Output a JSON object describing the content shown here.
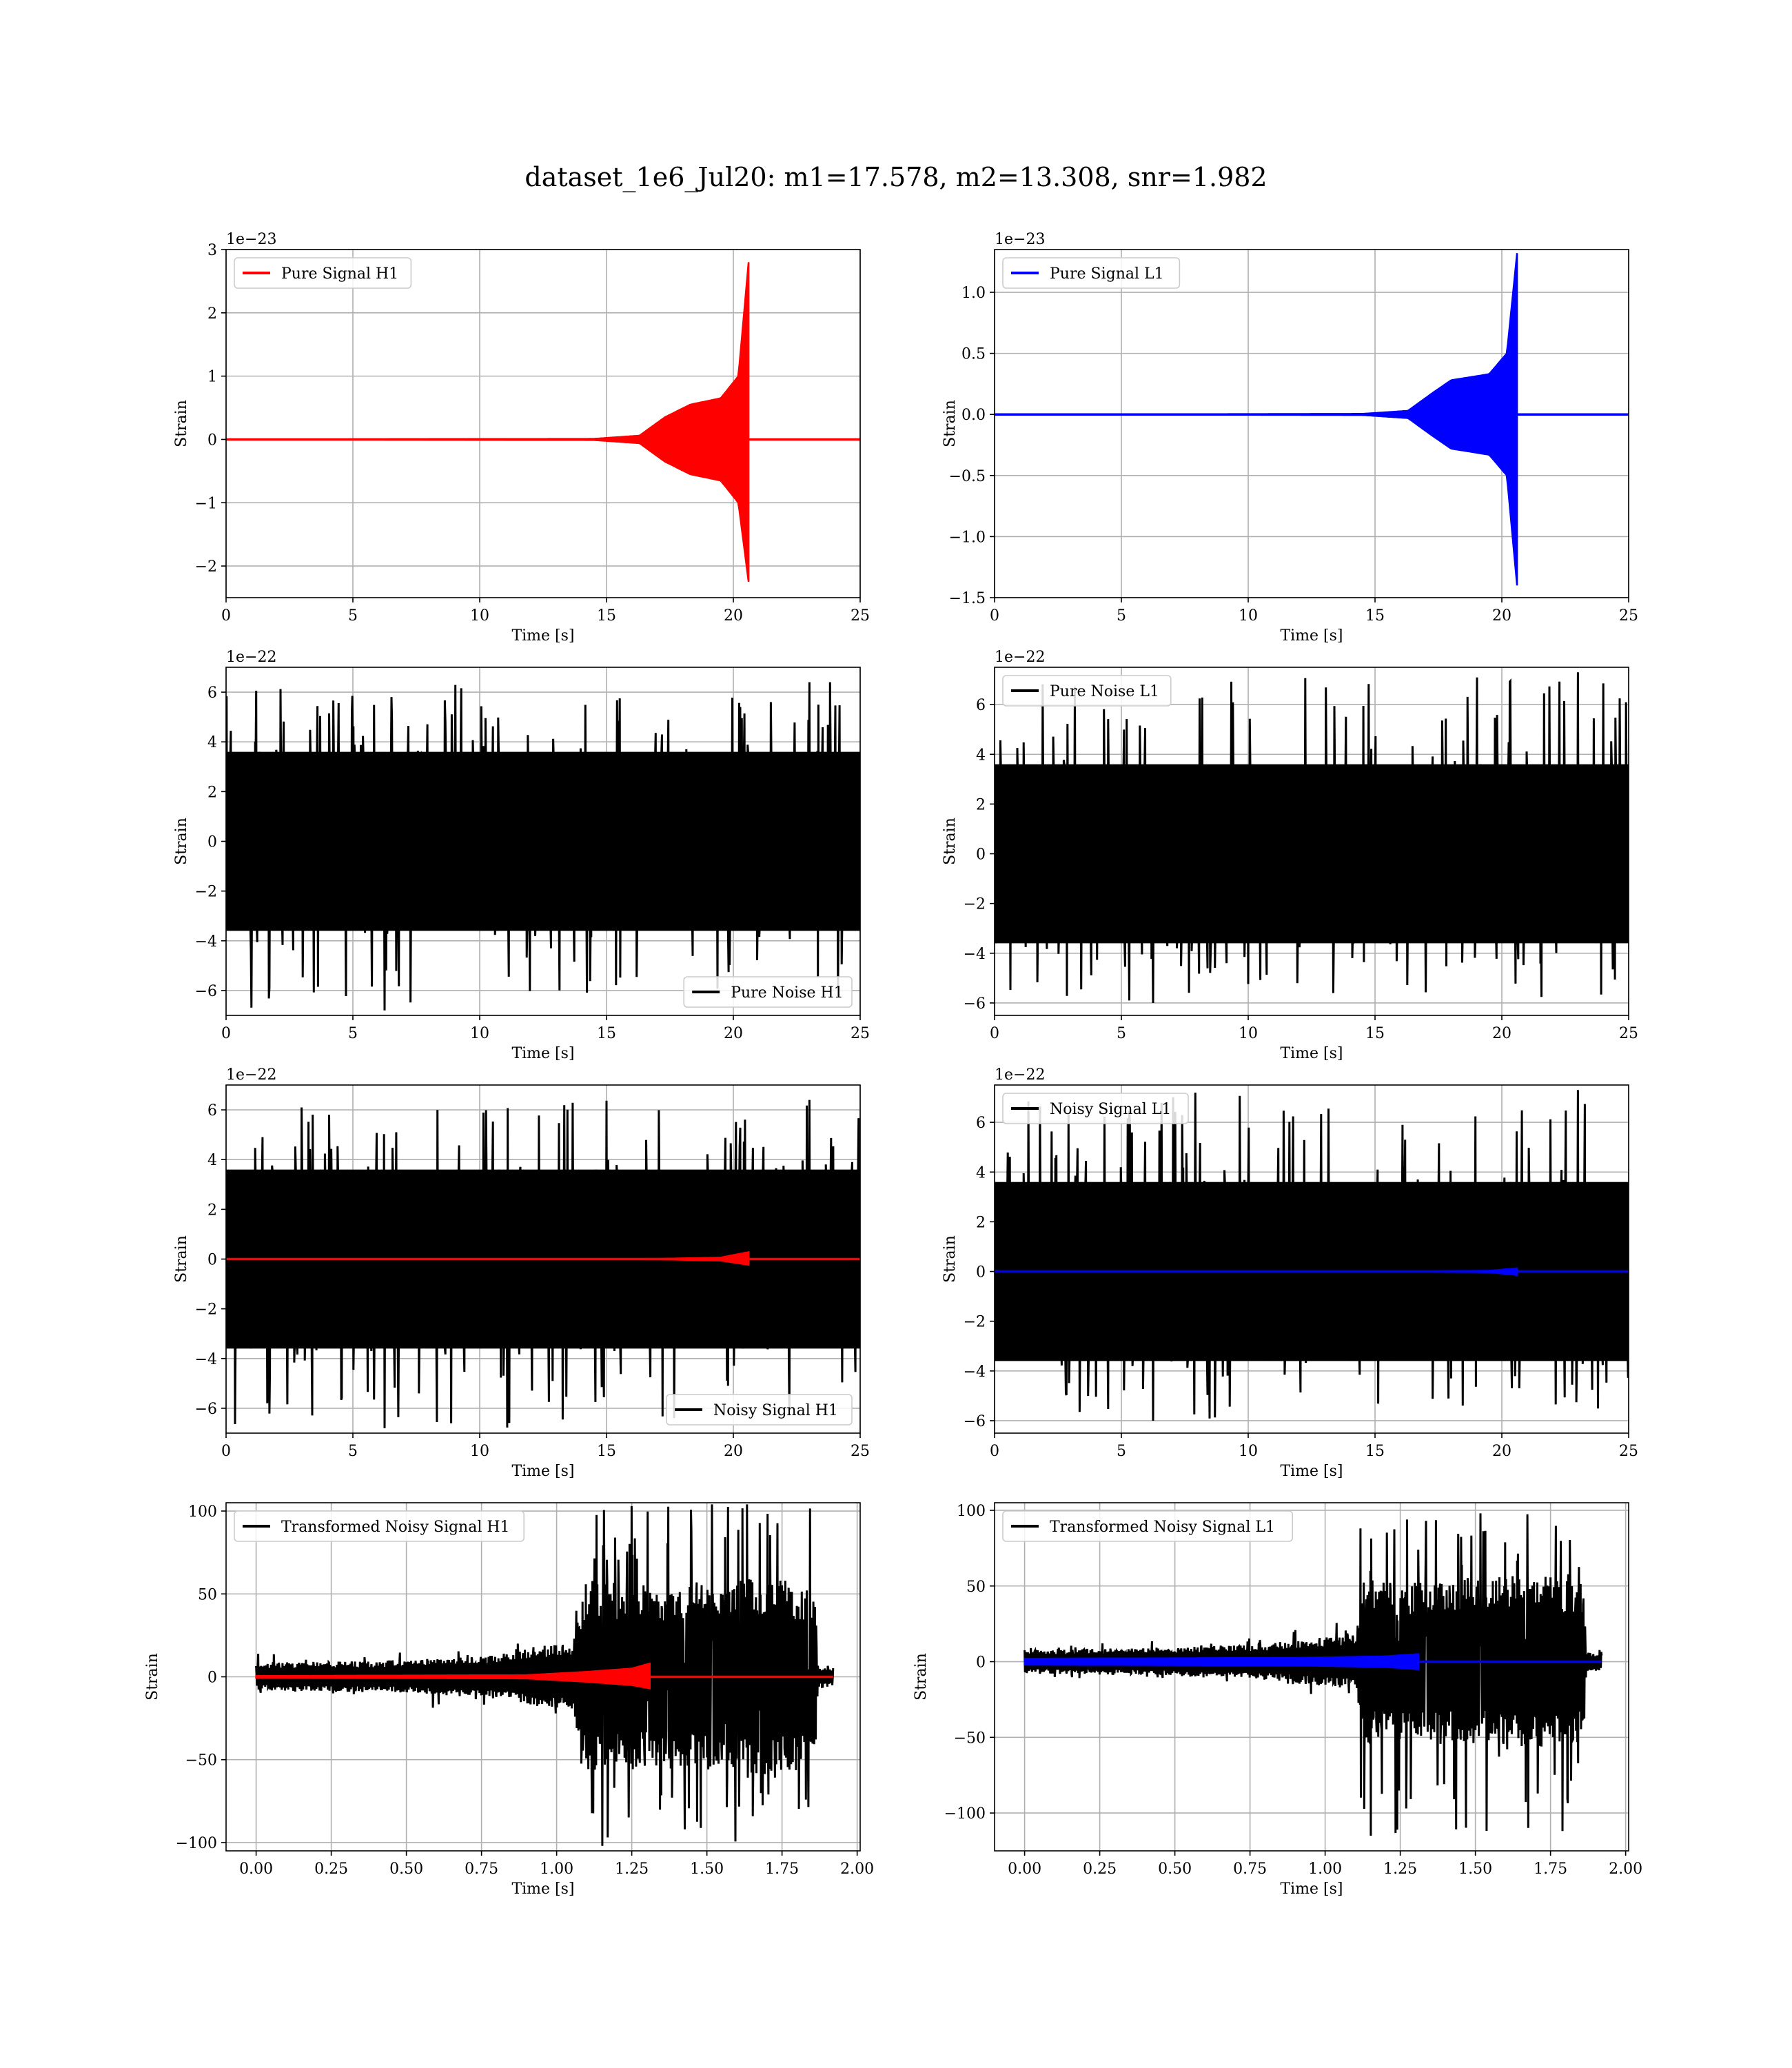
{
  "figure": {
    "title": "dataset_1e6_Jul20: m1=17.578, m2=13.308, snr=1.982"
  },
  "colors": {
    "h1_signal": "#ff0000",
    "l1_signal": "#0000ff",
    "noise": "#000000",
    "grid": "#b0b0b0"
  },
  "chart_data": [
    {
      "id": "pure-signal-h1",
      "type": "line",
      "xlabel": "Time [s]",
      "ylabel": "Strain",
      "offset_text": "1e−23",
      "xlim": [
        0,
        25
      ],
      "ylim": [
        -2.5,
        3
      ],
      "xticks": [
        0,
        5,
        10,
        15,
        20,
        25
      ],
      "xtick_labels": [
        "0",
        "5",
        "10",
        "15",
        "20",
        "25"
      ],
      "yticks": [
        -2,
        -1,
        0,
        1,
        2,
        3
      ],
      "ytick_labels": [
        "−2",
        "−1",
        "0",
        "1",
        "2",
        "3"
      ],
      "legend_position": "upper-left",
      "grid": true,
      "series": [
        {
          "name": "Pure Signal H1",
          "color": "#ff0000",
          "kind": "chirp",
          "x_start": 0,
          "x_end": 25,
          "merger_time": 20.6,
          "envelope": [
            [
              0,
              0
            ],
            [
              14.5,
              0.01
            ],
            [
              16.3,
              0.06
            ],
            [
              17.3,
              0.35
            ],
            [
              18.3,
              0.55
            ],
            [
              19.5,
              0.65
            ],
            [
              20.2,
              1.0
            ],
            [
              20.6,
              2.8
            ]
          ],
          "envelope_negative": [
            [
              0,
              0
            ],
            [
              14.5,
              -0.01
            ],
            [
              16.3,
              -0.06
            ],
            [
              17.3,
              -0.35
            ],
            [
              18.3,
              -0.55
            ],
            [
              19.5,
              -0.65
            ],
            [
              20.2,
              -1.0
            ],
            [
              20.6,
              -2.25
            ]
          ]
        }
      ]
    },
    {
      "id": "pure-signal-l1",
      "type": "line",
      "xlabel": "Time [s]",
      "ylabel": "Strain",
      "offset_text": "1e−23",
      "xlim": [
        0,
        25
      ],
      "ylim": [
        -1.5,
        1.35
      ],
      "xticks": [
        0,
        5,
        10,
        15,
        20,
        25
      ],
      "xtick_labels": [
        "0",
        "5",
        "10",
        "15",
        "20",
        "25"
      ],
      "yticks": [
        -1.5,
        -1.0,
        -0.5,
        0.0,
        0.5,
        1.0
      ],
      "ytick_labels": [
        "−1.5",
        "−1.0",
        "−0.5",
        "0.0",
        "0.5",
        "1.0"
      ],
      "legend_position": "upper-left",
      "grid": true,
      "series": [
        {
          "name": "Pure Signal L1",
          "color": "#0000ff",
          "kind": "chirp",
          "x_start": 0,
          "x_end": 25,
          "merger_time": 20.6,
          "envelope": [
            [
              0,
              0
            ],
            [
              14.5,
              0.005
            ],
            [
              16.3,
              0.03
            ],
            [
              17.3,
              0.18
            ],
            [
              18.0,
              0.28
            ],
            [
              19.5,
              0.33
            ],
            [
              20.2,
              0.5
            ],
            [
              20.6,
              1.32
            ]
          ],
          "envelope_negative": [
            [
              0,
              0
            ],
            [
              14.5,
              -0.005
            ],
            [
              16.3,
              -0.03
            ],
            [
              17.3,
              -0.18
            ],
            [
              18.0,
              -0.28
            ],
            [
              19.5,
              -0.33
            ],
            [
              20.2,
              -0.5
            ],
            [
              20.6,
              -1.4
            ]
          ]
        }
      ]
    },
    {
      "id": "pure-noise-h1",
      "type": "line",
      "xlabel": "Time [s]",
      "ylabel": "Strain",
      "offset_text": "1e−22",
      "xlim": [
        0,
        25
      ],
      "ylim": [
        -7,
        7
      ],
      "xticks": [
        0,
        5,
        10,
        15,
        20,
        25
      ],
      "xtick_labels": [
        "0",
        "5",
        "10",
        "15",
        "20",
        "25"
      ],
      "yticks": [
        -6,
        -4,
        -2,
        0,
        2,
        4,
        6
      ],
      "ytick_labels": [
        "−6",
        "−4",
        "−2",
        "0",
        "2",
        "4",
        "6"
      ],
      "legend_position": "lower-right",
      "grid": true,
      "series": [
        {
          "name": "Pure Noise H1",
          "color": "#000000",
          "kind": "noise",
          "x_start": 0,
          "x_end": 25,
          "band": [
            -3.6,
            3.6
          ],
          "peak_max": 6.4,
          "peak_min": -6.8
        }
      ]
    },
    {
      "id": "pure-noise-l1",
      "type": "line",
      "xlabel": "Time [s]",
      "ylabel": "Strain",
      "offset_text": "1e−22",
      "xlim": [
        0,
        25
      ],
      "ylim": [
        -6.5,
        7.5
      ],
      "xticks": [
        0,
        5,
        10,
        15,
        20,
        25
      ],
      "xtick_labels": [
        "0",
        "5",
        "10",
        "15",
        "20",
        "25"
      ],
      "yticks": [
        -6,
        -4,
        -2,
        0,
        2,
        4,
        6
      ],
      "ytick_labels": [
        "−6",
        "−4",
        "−2",
        "0",
        "2",
        "4",
        "6"
      ],
      "legend_position": "upper-left",
      "grid": true,
      "series": [
        {
          "name": "Pure Noise L1",
          "color": "#000000",
          "kind": "noise",
          "x_start": 0,
          "x_end": 25,
          "band": [
            -3.6,
            3.6
          ],
          "peak_max": 7.3,
          "peak_min": -6.0
        }
      ]
    },
    {
      "id": "noisy-signal-h1",
      "type": "line",
      "xlabel": "Time [s]",
      "ylabel": "Strain",
      "offset_text": "1e−22",
      "xlim": [
        0,
        25
      ],
      "ylim": [
        -7,
        7
      ],
      "xticks": [
        0,
        5,
        10,
        15,
        20,
        25
      ],
      "xtick_labels": [
        "0",
        "5",
        "10",
        "15",
        "20",
        "25"
      ],
      "yticks": [
        -6,
        -4,
        -2,
        0,
        2,
        4,
        6
      ],
      "ytick_labels": [
        "−6",
        "−4",
        "−2",
        "0",
        "2",
        "4",
        "6"
      ],
      "legend_position": "lower-right",
      "grid": true,
      "series": [
        {
          "name": "Noisy Signal H1",
          "color": "#000000",
          "kind": "noise",
          "x_start": 0,
          "x_end": 25,
          "band": [
            -3.6,
            3.6
          ],
          "peak_max": 6.4,
          "peak_min": -6.8
        },
        {
          "name": "",
          "color": "#ff0000",
          "kind": "chirp",
          "x_start": 0,
          "x_end": 25,
          "merger_time": 20.6,
          "envelope": [
            [
              0,
              0
            ],
            [
              17.0,
              0.01
            ],
            [
              19.5,
              0.06
            ],
            [
              20.6,
              0.28
            ]
          ],
          "envelope_negative": [
            [
              0,
              0
            ],
            [
              17.0,
              -0.01
            ],
            [
              19.5,
              -0.06
            ],
            [
              20.6,
              -0.23
            ]
          ]
        }
      ]
    },
    {
      "id": "noisy-signal-l1",
      "type": "line",
      "xlabel": "Time [s]",
      "ylabel": "Strain",
      "offset_text": "1e−22",
      "xlim": [
        0,
        25
      ],
      "ylim": [
        -6.5,
        7.5
      ],
      "xticks": [
        0,
        5,
        10,
        15,
        20,
        25
      ],
      "xtick_labels": [
        "0",
        "5",
        "10",
        "15",
        "20",
        "25"
      ],
      "yticks": [
        -6,
        -4,
        -2,
        0,
        2,
        4,
        6
      ],
      "ytick_labels": [
        "−6",
        "−4",
        "−2",
        "0",
        "2",
        "4",
        "6"
      ],
      "legend_position": "upper-left",
      "grid": true,
      "series": [
        {
          "name": "Noisy Signal L1",
          "color": "#000000",
          "kind": "noise",
          "x_start": 0,
          "x_end": 25,
          "band": [
            -3.6,
            3.6
          ],
          "peak_max": 7.3,
          "peak_min": -6.0
        },
        {
          "name": "",
          "color": "#0000ff",
          "kind": "chirp",
          "x_start": 0,
          "x_end": 25,
          "merger_time": 20.6,
          "envelope": [
            [
              0,
              0
            ],
            [
              17.0,
              0.005
            ],
            [
              19.5,
              0.03
            ],
            [
              20.6,
              0.13
            ]
          ],
          "envelope_negative": [
            [
              0,
              0
            ],
            [
              17.0,
              -0.005
            ],
            [
              19.5,
              -0.03
            ],
            [
              20.6,
              -0.14
            ]
          ]
        }
      ]
    },
    {
      "id": "transformed-noisy-signal-h1",
      "type": "line",
      "xlabel": "Time [s]",
      "ylabel": "Strain",
      "offset_text": "",
      "xlim": [
        -0.1,
        2.01
      ],
      "ylim": [
        -105,
        105
      ],
      "xticks": [
        0,
        0.25,
        0.5,
        0.75,
        1.0,
        1.25,
        1.5,
        1.75,
        2.0
      ],
      "xtick_labels": [
        "0.00",
        "0.25",
        "0.50",
        "0.75",
        "1.00",
        "1.25",
        "1.50",
        "1.75",
        "2.00"
      ],
      "yticks": [
        -100,
        -50,
        0,
        50,
        100
      ],
      "ytick_labels": [
        "−100",
        "−50",
        "0",
        "50",
        "100"
      ],
      "legend_position": "upper-left",
      "grid": true,
      "series": [
        {
          "name": "Transformed Noisy Signal H1",
          "color": "#000000",
          "kind": "transformed_noise",
          "x_start": 0,
          "x_end": 1.92,
          "amplitude_profile": [
            [
              0,
              8
            ],
            [
              0.5,
              10
            ],
            [
              0.8,
              13
            ],
            [
              1.05,
              22
            ],
            [
              1.1,
              60
            ],
            [
              1.3,
              55
            ],
            [
              1.5,
              58
            ],
            [
              1.7,
              60
            ],
            [
              1.86,
              55
            ],
            [
              1.87,
              6
            ],
            [
              1.92,
              6
            ]
          ],
          "peak_max": 104,
          "peak_min": -102
        },
        {
          "name": "",
          "color": "#ff0000",
          "kind": "chirp",
          "x_start": 0,
          "x_end": 1.92,
          "merger_time": 1.31,
          "envelope": [
            [
              0,
              0.5
            ],
            [
              0.9,
              1.0
            ],
            [
              1.1,
              3.0
            ],
            [
              1.25,
              5.0
            ],
            [
              1.31,
              8.0
            ]
          ],
          "envelope_negative": [
            [
              0,
              -0.5
            ],
            [
              0.9,
              -1.0
            ],
            [
              1.1,
              -3.0
            ],
            [
              1.25,
              -5.0
            ],
            [
              1.31,
              -7.0
            ]
          ]
        }
      ]
    },
    {
      "id": "transformed-noisy-signal-l1",
      "type": "line",
      "xlabel": "Time [s]",
      "ylabel": "Strain",
      "offset_text": "",
      "xlim": [
        -0.1,
        2.01
      ],
      "ylim": [
        -125,
        105
      ],
      "xticks": [
        0,
        0.25,
        0.5,
        0.75,
        1.0,
        1.25,
        1.5,
        1.75,
        2.0
      ],
      "xtick_labels": [
        "0.00",
        "0.25",
        "0.50",
        "0.75",
        "1.00",
        "1.25",
        "1.50",
        "1.75",
        "2.00"
      ],
      "yticks": [
        -100,
        -50,
        0,
        50,
        100
      ],
      "ytick_labels": [
        "−100",
        "−50",
        "0",
        "50",
        "100"
      ],
      "legend_position": "upper-left",
      "grid": true,
      "series": [
        {
          "name": "Transformed Noisy Signal L1",
          "color": "#000000",
          "kind": "transformed_noise",
          "x_start": 0,
          "x_end": 1.92,
          "amplitude_profile": [
            [
              0,
              8
            ],
            [
              0.4,
              9
            ],
            [
              0.8,
              12
            ],
            [
              1.1,
              18
            ],
            [
              1.13,
              55
            ],
            [
              1.3,
              52
            ],
            [
              1.5,
              55
            ],
            [
              1.7,
              58
            ],
            [
              1.86,
              52
            ],
            [
              1.87,
              6
            ],
            [
              1.92,
              6
            ]
          ],
          "peak_max": 98,
          "peak_min": -115
        },
        {
          "name": "",
          "color": "#0000ff",
          "kind": "chirp",
          "x_start": 0,
          "x_end": 1.92,
          "merger_time": 1.31,
          "envelope": [
            [
              0,
              2.0
            ],
            [
              0.9,
              2.5
            ],
            [
              1.2,
              3.5
            ],
            [
              1.31,
              5.0
            ]
          ],
          "envelope_negative": [
            [
              0,
              -2.0
            ],
            [
              0.9,
              -2.5
            ],
            [
              1.2,
              -3.5
            ],
            [
              1.31,
              -5.0
            ]
          ]
        }
      ]
    }
  ]
}
